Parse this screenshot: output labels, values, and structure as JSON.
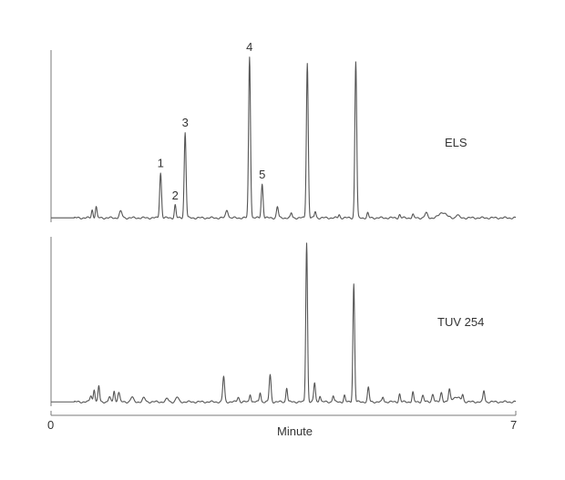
{
  "chart_data": {
    "type": "line",
    "xlabel": "Minute",
    "xlim": [
      0,
      7
    ],
    "xticks": [
      "0",
      "7"
    ],
    "panels": [
      {
        "name": "ELS",
        "ylim": [
          0,
          1
        ],
        "baseline": 0.01,
        "peaks": [
          {
            "x": 0.62,
            "y": 0.05,
            "w": 0.012
          },
          {
            "x": 0.68,
            "y": 0.07,
            "w": 0.012
          },
          {
            "x": 1.05,
            "y": 0.04,
            "w": 0.02
          },
          {
            "x": 1.65,
            "y": 0.28,
            "w": 0.014,
            "label": "1"
          },
          {
            "x": 1.87,
            "y": 0.08,
            "w": 0.012,
            "label": "2"
          },
          {
            "x": 2.02,
            "y": 0.53,
            "w": 0.014,
            "label": "3"
          },
          {
            "x": 2.65,
            "y": 0.05,
            "w": 0.018
          },
          {
            "x": 2.99,
            "y": 1.0,
            "w": 0.014,
            "label": "4"
          },
          {
            "x": 3.18,
            "y": 0.21,
            "w": 0.014,
            "label": "5"
          },
          {
            "x": 3.41,
            "y": 0.07,
            "w": 0.014
          },
          {
            "x": 3.62,
            "y": 0.03,
            "w": 0.012
          },
          {
            "x": 3.86,
            "y": 0.96,
            "w": 0.014
          },
          {
            "x": 3.98,
            "y": 0.04,
            "w": 0.012
          },
          {
            "x": 4.34,
            "y": 0.02,
            "w": 0.012
          },
          {
            "x": 4.59,
            "y": 0.97,
            "w": 0.014
          },
          {
            "x": 4.77,
            "y": 0.03,
            "w": 0.012
          },
          {
            "x": 5.25,
            "y": 0.02,
            "w": 0.012
          },
          {
            "x": 5.45,
            "y": 0.02,
            "w": 0.012
          },
          {
            "x": 5.65,
            "y": 0.03,
            "w": 0.02
          },
          {
            "x": 5.9,
            "y": 0.035,
            "w": 0.05
          },
          {
            "x": 6.12,
            "y": 0.02,
            "w": 0.02
          }
        ]
      },
      {
        "name": "TUV 254",
        "ylim": [
          0,
          1
        ],
        "baseline": 0.01,
        "peaks": [
          {
            "x": 0.6,
            "y": 0.04,
            "w": 0.015
          },
          {
            "x": 0.65,
            "y": 0.08,
            "w": 0.012
          },
          {
            "x": 0.72,
            "y": 0.1,
            "w": 0.012
          },
          {
            "x": 0.88,
            "y": 0.03,
            "w": 0.015
          },
          {
            "x": 0.95,
            "y": 0.07,
            "w": 0.012
          },
          {
            "x": 1.02,
            "y": 0.06,
            "w": 0.015
          },
          {
            "x": 1.22,
            "y": 0.03,
            "w": 0.02
          },
          {
            "x": 1.4,
            "y": 0.025,
            "w": 0.02
          },
          {
            "x": 1.75,
            "y": 0.02,
            "w": 0.02
          },
          {
            "x": 1.9,
            "y": 0.03,
            "w": 0.02
          },
          {
            "x": 2.6,
            "y": 0.16,
            "w": 0.014
          },
          {
            "x": 2.82,
            "y": 0.03,
            "w": 0.015
          },
          {
            "x": 3.0,
            "y": 0.05,
            "w": 0.012
          },
          {
            "x": 3.15,
            "y": 0.06,
            "w": 0.012
          },
          {
            "x": 3.3,
            "y": 0.17,
            "w": 0.014
          },
          {
            "x": 3.55,
            "y": 0.09,
            "w": 0.012
          },
          {
            "x": 3.85,
            "y": 1.0,
            "w": 0.013
          },
          {
            "x": 3.97,
            "y": 0.12,
            "w": 0.013
          },
          {
            "x": 4.05,
            "y": 0.04,
            "w": 0.012
          },
          {
            "x": 4.25,
            "y": 0.04,
            "w": 0.012
          },
          {
            "x": 4.42,
            "y": 0.04,
            "w": 0.012
          },
          {
            "x": 4.56,
            "y": 0.74,
            "w": 0.013
          },
          {
            "x": 4.78,
            "y": 0.09,
            "w": 0.013
          },
          {
            "x": 5.0,
            "y": 0.03,
            "w": 0.012
          },
          {
            "x": 5.25,
            "y": 0.05,
            "w": 0.012
          },
          {
            "x": 5.45,
            "y": 0.06,
            "w": 0.012
          },
          {
            "x": 5.6,
            "y": 0.04,
            "w": 0.015
          },
          {
            "x": 5.75,
            "y": 0.05,
            "w": 0.015
          },
          {
            "x": 5.88,
            "y": 0.06,
            "w": 0.015
          },
          {
            "x": 6.0,
            "y": 0.07,
            "w": 0.013
          },
          {
            "x": 6.2,
            "y": 0.04,
            "w": 0.012
          },
          {
            "x": 6.52,
            "y": 0.07,
            "w": 0.013
          },
          {
            "x": 6.1,
            "y": 0.03,
            "w": 0.06
          }
        ]
      }
    ]
  }
}
